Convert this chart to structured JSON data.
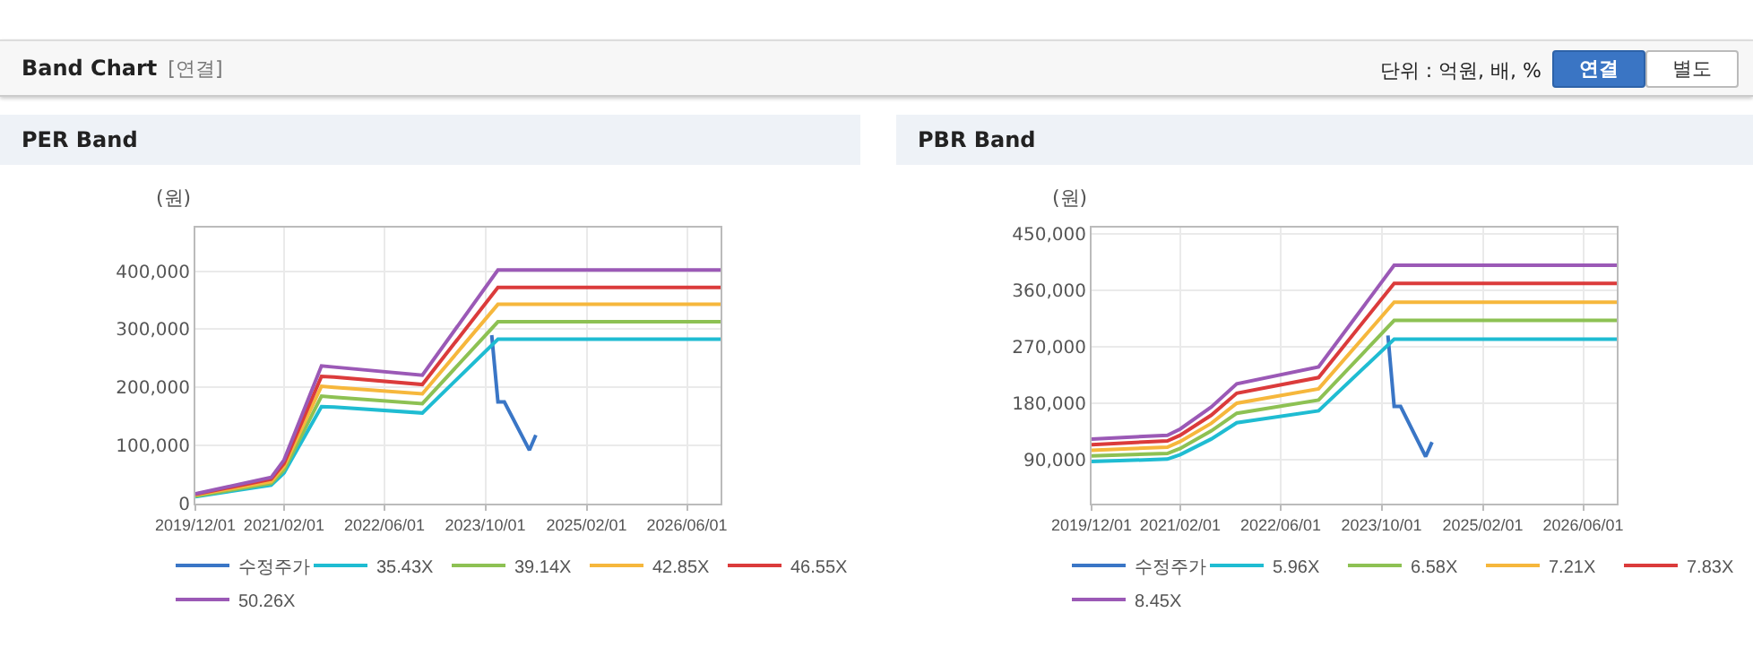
{
  "chart_data": [
    {
      "type": "other",
      "title": "Band Chart",
      "subtitle": "[연결]",
      "annotations": [
        "단위 : 억원, 배, %",
        "연결",
        "별도"
      ]
    },
    {
      "type": "line",
      "title": "PER Band",
      "ylabel": "(원)",
      "xlim": [
        "2019-12-01",
        "2026-11-10"
      ],
      "ylim": [
        0,
        475000
      ],
      "yticks": [
        0,
        {
          "value": 100000,
          "label": "100,000"
        },
        {
          "value": 200000,
          "label": "200,000"
        },
        {
          "value": 300000,
          "label": "300,000"
        },
        {
          "value": 400000,
          "label": "400,000"
        }
      ],
      "xticks": [
        {
          "value": "2019-12-01",
          "label": "2019/12/01"
        },
        {
          "value": "2021-02-01",
          "label": "2021/02/01"
        },
        {
          "value": "2022-06-01",
          "label": "2022/06/01"
        },
        {
          "value": "2023-10-01",
          "label": "2023/10/01"
        },
        {
          "value": "2025-02-01",
          "label": "2025/02/01"
        },
        {
          "value": "2026-06-01",
          "label": "2026/06/01"
        }
      ],
      "x": [
        "2019-12-01",
        "2020-12-01",
        "2021-02-01",
        "2021-08-01",
        "2021-10-01",
        "2022-12-01",
        "2023-12-01",
        "2026-11-10"
      ],
      "grid": true,
      "legend": "bottom",
      "marker": "none",
      "line_style": "solid",
      "series": [
        {
          "name": "수정주가",
          "color": "#3a76c6",
          "x": [
            "2023-11-01",
            "2023-12-01",
            "2024-01-01",
            "2024-05-01",
            "2024-06-01"
          ],
          "values": [
            290000,
            175000,
            175000,
            92000,
            118000
          ]
        },
        {
          "name": "35.43X",
          "color": "#1fbcd2",
          "values": [
            12000,
            32000,
            53000,
            167000,
            166000,
            156000,
            283000,
            283000
          ]
        },
        {
          "name": "39.14X",
          "color": "#8dc153",
          "values": [
            13000,
            35000,
            58000,
            185000,
            183000,
            172000,
            313000,
            313000
          ]
        },
        {
          "name": "42.85X",
          "color": "#f6b73c",
          "values": [
            15000,
            38000,
            64000,
            202000,
            200000,
            189000,
            343000,
            343000
          ]
        },
        {
          "name": "46.55X",
          "color": "#db3b3b",
          "values": [
            16000,
            42000,
            69000,
            219000,
            218000,
            205000,
            372000,
            372000
          ]
        },
        {
          "name": "50.26X",
          "color": "#9b59b6",
          "values": [
            17000,
            45000,
            75000,
            237000,
            235000,
            221000,
            402000,
            402000
          ]
        }
      ]
    },
    {
      "type": "line",
      "title": "PBR Band",
      "ylabel": "(원)",
      "xlim": [
        "2019-12-01",
        "2026-11-10"
      ],
      "ylim": [
        20000,
        460000
      ],
      "yticks": [
        {
          "value": 90000,
          "label": "90,000"
        },
        {
          "value": 180000,
          "label": "180,000"
        },
        {
          "value": 270000,
          "label": "270,000"
        },
        {
          "value": 360000,
          "label": "360,000"
        },
        {
          "value": 450000,
          "label": "450,000"
        }
      ],
      "xticks": [
        {
          "value": "2019-12-01",
          "label": "2019/12/01"
        },
        {
          "value": "2021-02-01",
          "label": "2021/02/01"
        },
        {
          "value": "2022-06-01",
          "label": "2022/06/01"
        },
        {
          "value": "2023-10-01",
          "label": "2023/10/01"
        },
        {
          "value": "2025-02-01",
          "label": "2025/02/01"
        },
        {
          "value": "2026-06-01",
          "label": "2026/06/01"
        }
      ],
      "x": [
        "2019-12-01",
        "2020-12-01",
        "2021-02-01",
        "2021-07-01",
        "2021-11-01",
        "2022-12-01",
        "2023-12-01",
        "2026-11-10"
      ],
      "grid": true,
      "legend": "bottom",
      "marker": "none",
      "line_style": "solid",
      "series": [
        {
          "name": "수정주가",
          "color": "#3a76c6",
          "x": [
            "2023-11-01",
            "2023-12-01",
            "2024-01-01",
            "2024-05-01",
            "2024-06-01"
          ],
          "values": [
            288000,
            175000,
            175000,
            95000,
            118000
          ]
        },
        {
          "name": "5.96X",
          "color": "#1fbcd2",
          "values": [
            87000,
            91000,
            98000,
            123000,
            149000,
            168000,
            282000,
            282000
          ]
        },
        {
          "name": "6.58X",
          "color": "#8dc153",
          "values": [
            96000,
            100000,
            108000,
            136000,
            164000,
            185000,
            312000,
            312000
          ]
        },
        {
          "name": "7.21X",
          "color": "#f6b73c",
          "values": [
            105000,
            110000,
            119000,
            148000,
            180000,
            203000,
            341000,
            341000
          ]
        },
        {
          "name": "7.83X",
          "color": "#db3b3b",
          "values": [
            114000,
            120000,
            129000,
            161000,
            196000,
            221000,
            371000,
            371000
          ]
        },
        {
          "name": "8.45X",
          "color": "#9b59b6",
          "values": [
            123000,
            129000,
            139000,
            174000,
            211000,
            238000,
            400000,
            400000
          ]
        }
      ]
    }
  ]
}
